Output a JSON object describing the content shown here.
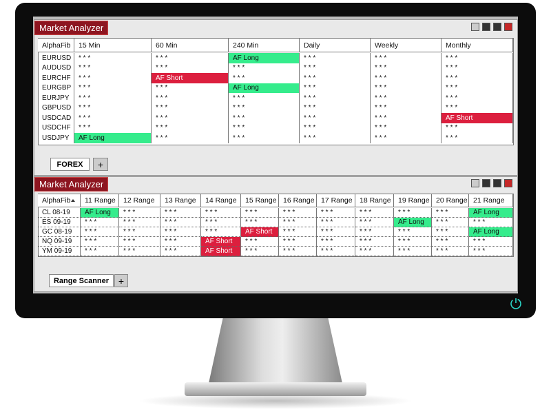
{
  "panels": [
    {
      "title": "Market Analyzer",
      "columns": [
        "AlphaFib",
        "15 Min",
        "60 Min",
        "240 Min",
        "Daily",
        "Weekly",
        "Monthly"
      ],
      "rows": [
        [
          "EURUSD",
          "* * *",
          "* * *",
          {
            "text": "AF Long",
            "color": "#35ec8c"
          },
          "* * *",
          "* * *",
          "* * *"
        ],
        [
          "AUDUSD",
          "* * *",
          "* * *",
          "* * *",
          "* * *",
          "* * *",
          "* * *"
        ],
        [
          "EURCHF",
          "* * *",
          {
            "text": "AF Short",
            "color": "#dc1f3e"
          },
          "* * *",
          "* * *",
          "* * *",
          "* * *"
        ],
        [
          "EURGBP",
          "* * *",
          "* * *",
          {
            "text": "AF Long",
            "color": "#35ec8c"
          },
          "* * *",
          "* * *",
          "* * *"
        ],
        [
          "EURJPY",
          "* * *",
          "* * *",
          "* * *",
          "* * *",
          "* * *",
          "* * *"
        ],
        [
          "GBPUSD",
          "* * *",
          "* * *",
          "* * *",
          "* * *",
          "* * *",
          "* * *"
        ],
        [
          "USDCAD",
          "* * *",
          "* * *",
          "* * *",
          "* * *",
          "* * *",
          {
            "text": "AF Short",
            "color": "#dc1f3e"
          }
        ],
        [
          "USDCHF",
          "* * *",
          "* * *",
          "* * *",
          "* * *",
          "* * *",
          "* * *"
        ],
        [
          "USDJPY",
          {
            "text": "AF Long",
            "color": "#35ec8c"
          },
          "* * *",
          "* * *",
          "* * *",
          "* * *",
          "* * *"
        ]
      ],
      "tabs": [
        "FOREX",
        "+"
      ]
    },
    {
      "title": "Market Analyzer",
      "columns": [
        "AlphaFib",
        "11 Range",
        "12 Range",
        "13 Range",
        "14 Range",
        "15 Range",
        "16 Range",
        "17 Range",
        "18 Range",
        "19 Range",
        "20 Range",
        "21 Range"
      ],
      "rows": [
        [
          "CL 08-19",
          {
            "text": "AF Long",
            "color": "#35ec8c"
          },
          "* * *",
          "* * *",
          "* * *",
          "* * *",
          "* * *",
          "* * *",
          "* * *",
          "* * *",
          "* * *",
          {
            "text": "AF Long",
            "color": "#35ec8c"
          }
        ],
        [
          "ES 09-19",
          "* * *",
          "* * *",
          "* * *",
          "* * *",
          "* * *",
          "* * *",
          "* * *",
          "* * *",
          {
            "text": "AF Long",
            "color": "#35ec8c"
          },
          "* * *",
          "* * *"
        ],
        [
          "GC 08-19",
          "* * *",
          "* * *",
          "* * *",
          "* * *",
          {
            "text": "AF Short",
            "color": "#dc1f3e"
          },
          "* * *",
          "* * *",
          "* * *",
          "* * *",
          "* * *",
          {
            "text": "AF Long",
            "color": "#35ec8c"
          }
        ],
        [
          "NQ 09-19",
          "* * *",
          "* * *",
          "* * *",
          {
            "text": "AF Short",
            "color": "#dc1f3e"
          },
          "* * *",
          "* * *",
          "* * *",
          "* * *",
          "* * *",
          "* * *",
          "* * *"
        ],
        [
          "YM 09-19",
          "* * *",
          "* * *",
          "* * *",
          {
            "text": "AF Short",
            "color": "#dc1f3e"
          },
          "* * *",
          "* * *",
          "* * *",
          "* * *",
          "* * *",
          "* * *",
          "* * *"
        ]
      ],
      "tabs": [
        "Range Scanner",
        "+"
      ]
    }
  ]
}
